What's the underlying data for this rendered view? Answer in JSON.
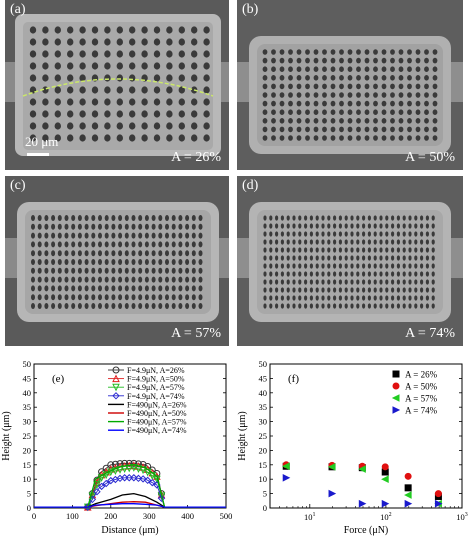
{
  "panels": [
    {
      "letter": "(a)",
      "area_label": "A = 26%",
      "scale_label": "20 μm"
    },
    {
      "letter": "(b)",
      "area_label": "A = 50%"
    },
    {
      "letter": "(c)",
      "area_label": "A = 57%"
    },
    {
      "letter": "(d)",
      "area_label": "A = 74%"
    }
  ],
  "chart_data": [
    {
      "type": "line",
      "panel": "(e)",
      "xlabel": "Distance (μm)",
      "ylabel": "Height (μm)",
      "xlim": [
        0,
        500
      ],
      "ylim": [
        0,
        50
      ],
      "xticks": [
        0,
        100,
        200,
        300,
        400,
        500
      ],
      "yticks": [
        0,
        5,
        10,
        15,
        20,
        25,
        30,
        35,
        40,
        45,
        50
      ],
      "legend_position": "top-right",
      "series": [
        {
          "name": "F=4.9μN, A=26%",
          "color": "#333333",
          "marker": "circle",
          "x": [
            0,
            140,
            170,
            200,
            230,
            260,
            290,
            320,
            340,
            500
          ],
          "y": [
            0.3,
            0.3,
            12,
            15,
            15.5,
            15.5,
            15,
            12,
            0.3,
            0.3
          ]
        },
        {
          "name": "F=4.9μN, A=50%",
          "color": "#e02020",
          "marker": "triangle",
          "x": [
            0,
            140,
            170,
            200,
            230,
            260,
            290,
            320,
            340,
            500
          ],
          "y": [
            0.3,
            0.3,
            11,
            13.5,
            14.5,
            14.8,
            14,
            11,
            0.3,
            0.3
          ]
        },
        {
          "name": "F=4.9μN, A=57%",
          "color": "#22bb22",
          "marker": "triangle-down",
          "x": [
            0,
            140,
            170,
            200,
            230,
            260,
            290,
            320,
            340,
            500
          ],
          "y": [
            0.3,
            0.3,
            10,
            12.5,
            13.5,
            14,
            13,
            10,
            0.3,
            0.3
          ]
        },
        {
          "name": "F=4.9μN, A=74%",
          "color": "#2a2ad0",
          "marker": "diamond",
          "x": [
            0,
            140,
            170,
            200,
            230,
            260,
            290,
            320,
            340,
            500
          ],
          "y": [
            0.3,
            0.3,
            7,
            9.5,
            10.5,
            10.5,
            10,
            8,
            0.3,
            0.3
          ]
        },
        {
          "name": "F=490μN, A=26%",
          "color": "#000000",
          "marker": "none",
          "x": [
            0,
            140,
            160,
            200,
            230,
            260,
            290,
            320,
            340,
            500
          ],
          "y": [
            0.3,
            0.3,
            1.5,
            3,
            4.5,
            5,
            4,
            2,
            0.3,
            0.3
          ]
        },
        {
          "name": "F=490μN, A=50%",
          "color": "#cc0000",
          "marker": "none",
          "x": [
            0,
            140,
            160,
            200,
            230,
            260,
            290,
            320,
            340,
            500
          ],
          "y": [
            0.3,
            0.3,
            0.8,
            1.5,
            2,
            2.2,
            2,
            1,
            0.3,
            0.3
          ]
        },
        {
          "name": "F=490μN, A=57%",
          "color": "#00aa00",
          "marker": "none",
          "x": [
            0,
            140,
            160,
            200,
            230,
            260,
            290,
            320,
            340,
            500
          ],
          "y": [
            0.3,
            0.3,
            10,
            13,
            14.5,
            15,
            14,
            11,
            0.3,
            0.3
          ]
        },
        {
          "name": "F=490μN, A=74%",
          "color": "#0000ff",
          "marker": "none",
          "x": [
            0,
            140,
            160,
            200,
            230,
            260,
            290,
            320,
            340,
            500
          ],
          "y": [
            0.3,
            0.3,
            1,
            1.3,
            1.5,
            1.5,
            1.3,
            1,
            0.3,
            0.3
          ]
        }
      ]
    },
    {
      "type": "scatter",
      "panel": "(f)",
      "xlabel": "Force (μN)",
      "ylabel": "Height (μm)",
      "xscale": "log",
      "xlim": [
        3,
        1000
      ],
      "ylim": [
        0,
        50
      ],
      "xticks": [
        10,
        100,
        1000
      ],
      "xtick_labels": [
        {
          "base": "10",
          "exp": "1"
        },
        {
          "base": "10",
          "exp": "2"
        },
        {
          "base": "10",
          "exp": "3"
        }
      ],
      "yticks": [
        0,
        5,
        10,
        15,
        20,
        25,
        30,
        35,
        40,
        45,
        50
      ],
      "legend_position": "top-right",
      "series": [
        {
          "name": "A = 26%",
          "color": "#000000",
          "marker": "square",
          "x": [
            4.9,
            19.6,
            49,
            98,
            196,
            490
          ],
          "y": [
            14.5,
            14.3,
            14,
            12.5,
            7,
            4
          ]
        },
        {
          "name": "A = 50%",
          "color": "#e01010",
          "marker": "circle",
          "x": [
            4.9,
            19.6,
            49,
            98,
            196,
            490
          ],
          "y": [
            15,
            14.8,
            14.5,
            14.3,
            11,
            5
          ]
        },
        {
          "name": "A = 57%",
          "color": "#22cc22",
          "marker": "triangle-left",
          "x": [
            4.9,
            19.6,
            49,
            98,
            196,
            490
          ],
          "y": [
            14.5,
            14.3,
            13.5,
            10,
            4.5,
            1.5
          ]
        },
        {
          "name": "A = 74%",
          "color": "#1a1acc",
          "marker": "triangle-right",
          "x": [
            4.9,
            19.6,
            49,
            98,
            196,
            490
          ],
          "y": [
            10.5,
            5,
            1.5,
            1.5,
            1.5,
            1.5
          ]
        }
      ]
    }
  ]
}
